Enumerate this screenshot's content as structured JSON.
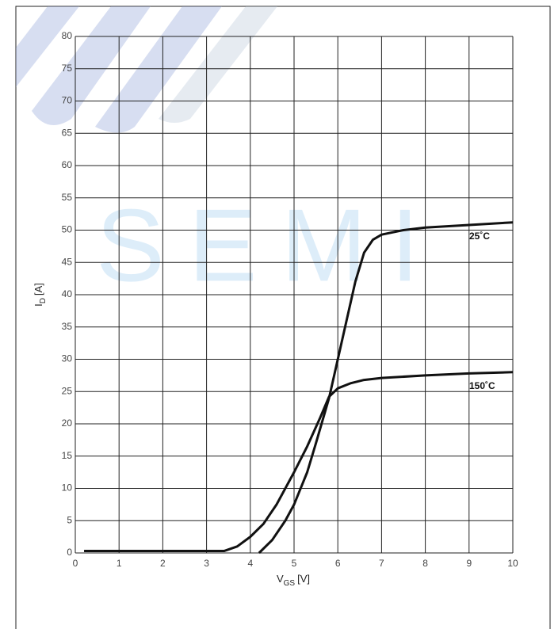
{
  "chart_data": {
    "type": "line",
    "watermark": "SEMI",
    "ylabel": {
      "main": "I",
      "sub": "D",
      "unit": "[A]"
    },
    "xlabel": {
      "main": "V",
      "sub": "GS",
      "unit": "[V]"
    },
    "xlim": [
      0,
      10
    ],
    "xticks": [
      0,
      1,
      2,
      3,
      4,
      5,
      6,
      7,
      8,
      9,
      10
    ],
    "ylim": [
      0,
      80
    ],
    "yticks": [
      0,
      5,
      10,
      15,
      20,
      25,
      30,
      35,
      40,
      45,
      50,
      55,
      60,
      65,
      70,
      75,
      80
    ],
    "grid": true,
    "series": [
      {
        "name": "25˚C",
        "color": "#111111",
        "x": [
          4.2,
          4.5,
          4.8,
          5,
          5.3,
          5.5,
          5.8,
          6,
          6.2,
          6.4,
          6.6,
          6.8,
          7,
          7.5,
          8,
          9,
          10
        ],
        "values": [
          0,
          2,
          5,
          7.5,
          12.5,
          17,
          24,
          30,
          36,
          42,
          46.5,
          48.5,
          49.3,
          50,
          50.4,
          50.8,
          51.2
        ]
      },
      {
        "name": "150˚C",
        "color": "#111111",
        "x": [
          0.2,
          1,
          2,
          3,
          3.4,
          3.7,
          4,
          4.3,
          4.6,
          5,
          5.3,
          5.6,
          5.8,
          6,
          6.3,
          6.6,
          7,
          8,
          9,
          10
        ],
        "values": [
          0.3,
          0.3,
          0.3,
          0.3,
          0.3,
          1,
          2.5,
          4.5,
          7.5,
          12.5,
          16.5,
          21,
          24.2,
          25.5,
          26.3,
          26.8,
          27.1,
          27.5,
          27.8,
          28
        ]
      }
    ]
  }
}
